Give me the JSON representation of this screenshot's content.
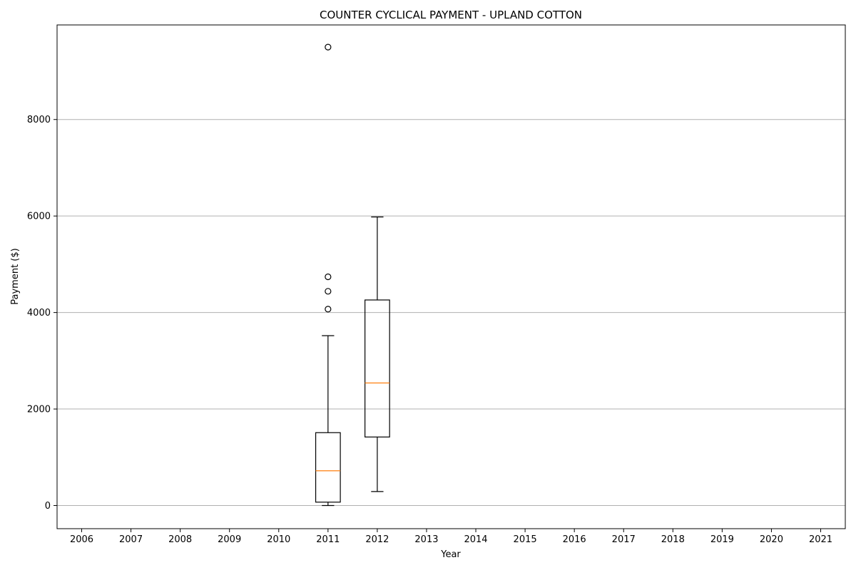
{
  "chart_data": {
    "type": "box",
    "title": "COUNTER CYCLICAL PAYMENT - UPLAND COTTON",
    "xlabel": "Year",
    "ylabel": "Payment ($)",
    "categories": [
      "2006",
      "2007",
      "2008",
      "2009",
      "2010",
      "2011",
      "2012",
      "2013",
      "2014",
      "2015",
      "2016",
      "2017",
      "2018",
      "2019",
      "2020",
      "2021"
    ],
    "ylim": [
      -480,
      9960
    ],
    "yticks": [
      0,
      2000,
      4000,
      6000,
      8000
    ],
    "grid": "y-major",
    "colors": {
      "box": "#000000",
      "median": "#ff7f0e",
      "grid": "#b0b0b0"
    },
    "boxes": [
      {
        "category": "2011",
        "whisker_low": 0,
        "q1": 70,
        "median": 720,
        "q3": 1510,
        "whisker_high": 3520,
        "outliers": [
          4070,
          4440,
          4740,
          9500
        ]
      },
      {
        "category": "2012",
        "whisker_low": 290,
        "q1": 1420,
        "median": 2540,
        "q3": 4260,
        "whisker_high": 5980,
        "outliers": []
      }
    ]
  }
}
